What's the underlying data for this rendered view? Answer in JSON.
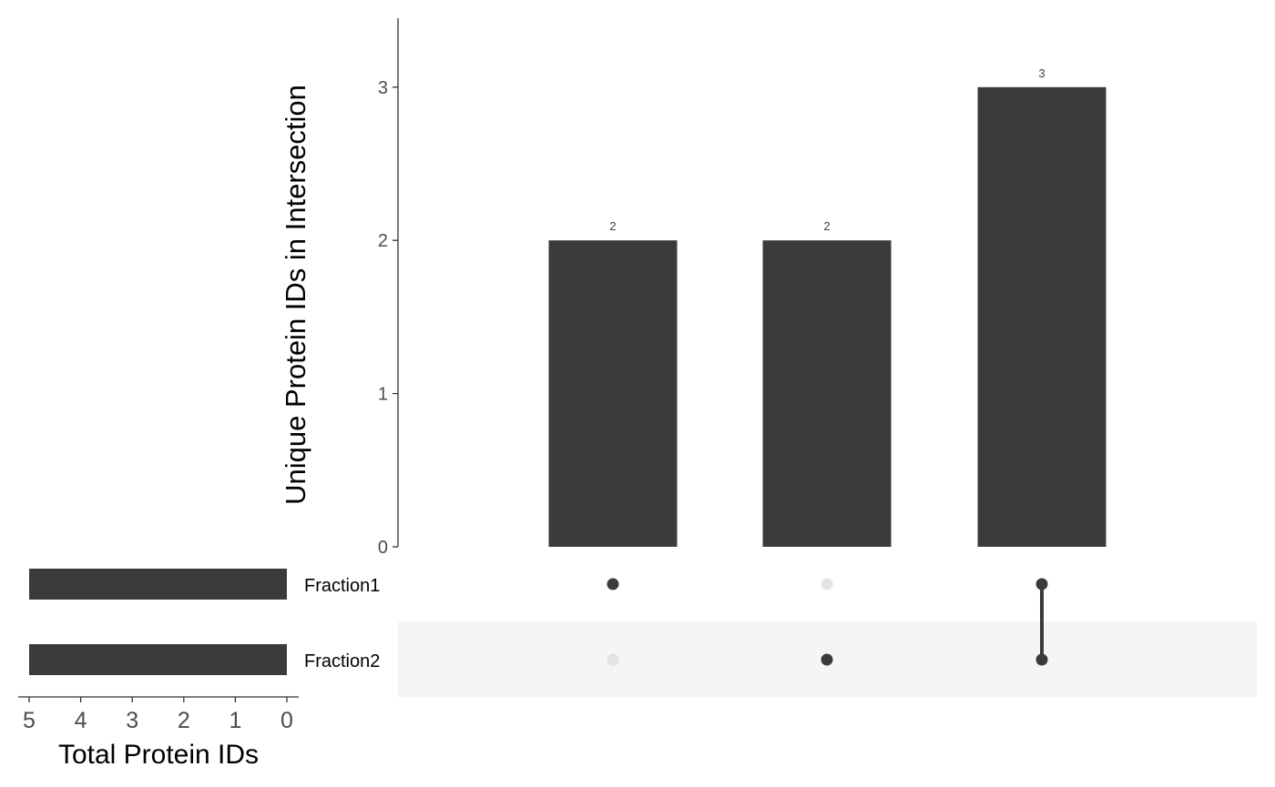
{
  "chart_data": {
    "type": "bar",
    "subtype": "upset",
    "colors": {
      "bar": "#3b3b3b",
      "dot_active": "#3b3b3b",
      "dot_inactive": "#e3e3e3",
      "row_shade": "#f5f5f5",
      "axis": "#333333"
    },
    "intersections": {
      "ylabel": "Unique Protein IDs in Intersection",
      "ylim": [
        0,
        3.45
      ],
      "yticks": [
        "0",
        "1",
        "2",
        "3"
      ],
      "values": [
        2,
        2,
        3
      ],
      "value_labels": [
        "2",
        "2",
        "3"
      ],
      "membership": [
        [
          true,
          false
        ],
        [
          false,
          true
        ],
        [
          true,
          true
        ]
      ]
    },
    "sets": {
      "names": [
        "Fraction1",
        "Fraction2"
      ],
      "sizes": [
        5,
        5
      ],
      "xlabel": "Total Protein IDs",
      "xlim": [
        0,
        5.3
      ],
      "xticks": [
        "5",
        "4",
        "3",
        "2",
        "1",
        "0"
      ]
    }
  }
}
